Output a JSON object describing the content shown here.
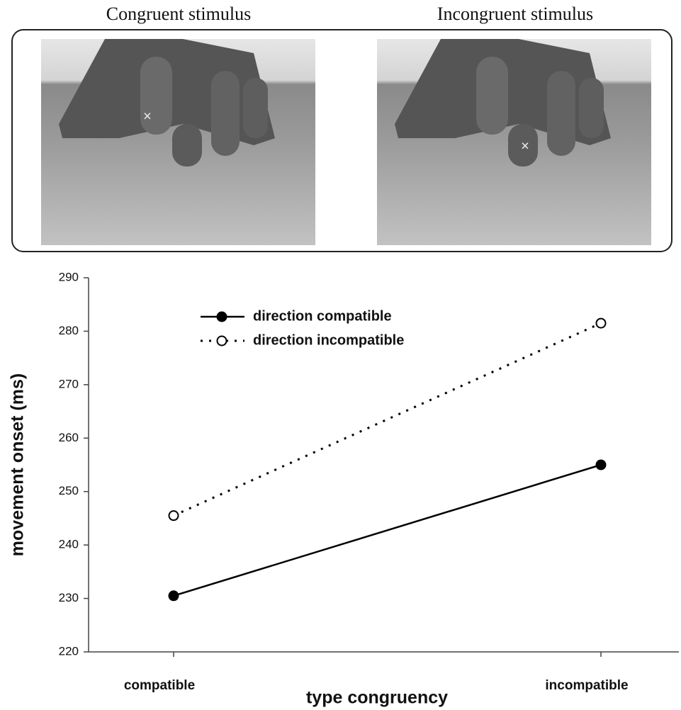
{
  "stimuli": {
    "congruent_title": "Congruent stimulus",
    "incongruent_title": "Incongruent stimulus"
  },
  "chart_data": {
    "type": "line",
    "xlabel": "type congruency",
    "ylabel": "movement onset (ms)",
    "categories": [
      "compatible",
      "incompatible"
    ],
    "series": [
      {
        "name": "direction compatible",
        "color": "#000000",
        "line_style": "solid",
        "marker": "filled",
        "values": [
          230.5,
          255
        ]
      },
      {
        "name": "direction incompatible",
        "color": "#000000",
        "line_style": "dotted",
        "marker": "open",
        "values": [
          245.5,
          281.5
        ]
      }
    ],
    "ylim": [
      220,
      290
    ],
    "yticks": [
      220,
      230,
      240,
      250,
      260,
      270,
      280,
      290
    ],
    "grid": false,
    "legend": "upper left"
  }
}
